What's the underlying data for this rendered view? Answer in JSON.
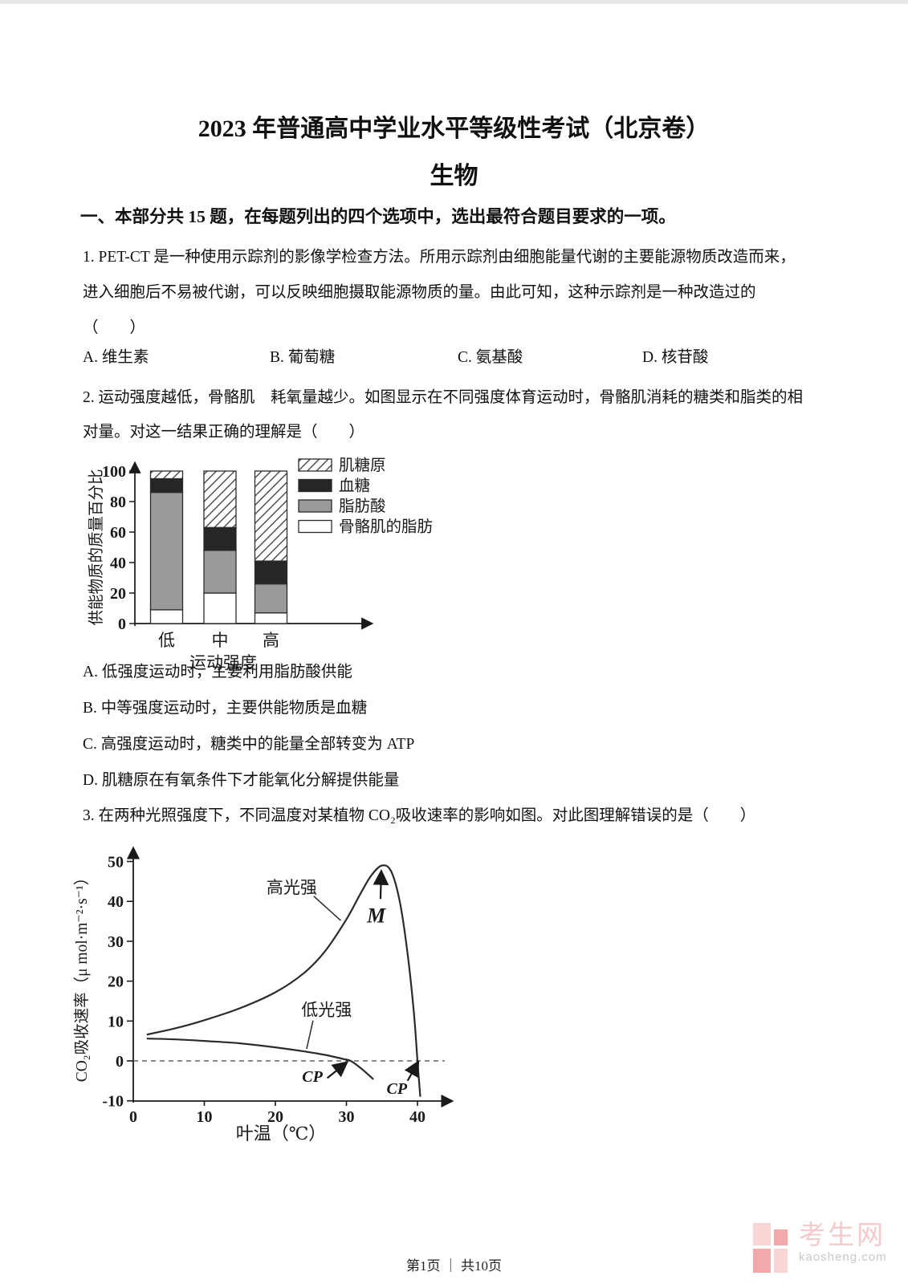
{
  "header": {
    "title": "2023 年普通高中学业水平等级性考试（北京卷）",
    "subject": "生物"
  },
  "section": {
    "heading": "一、本部分共 15 题，在每题列出的四个选项中，选出最符合题目要求的一项。"
  },
  "questions": {
    "q1": {
      "lines": [
        "1. PET-CT 是一种使用示踪剂的影像学检查方法。所用示踪剂由细胞能量代谢的主要能源物质改造而来，",
        "进入细胞后不易被代谢，可以反映细胞摄取能源物质的量。由此可知，这种示踪剂是一种改造过的",
        "（　　）"
      ],
      "options": [
        "A. 维生素",
        "B. 葡萄糖",
        "C. 氨基酸",
        "D. 核苷酸"
      ]
    },
    "q2": {
      "lines": [
        "2. 运动强度越低，骨骼肌　耗氧量越少。如图显示在不同强度体育运动时，骨骼肌消耗的糖类和脂类的相",
        "对量。对这一结果正确的理解是（　　）"
      ],
      "options": [
        "A. 低强度运动时，主要利用脂肪酸供能",
        "B. 中等强度运动时，主要供能物质是血糖",
        "C. 高强度运动时，糖类中的能量全部转变为 ATP",
        "D. 肌糖原在有氧条件下才能氧化分解提供能量"
      ]
    },
    "q3": {
      "lines": [
        "3. 在两种光照强度下，不同温度对某植物 CO₂吸收速率的影响如图。对此图理解错误的是（　　）"
      ]
    }
  },
  "chart_data": [
    {
      "type": "bar",
      "stacked": true,
      "categories": [
        "低",
        "中",
        "高"
      ],
      "series": [
        {
          "name": "骨骼肌的脂肪",
          "values": [
            9,
            20,
            7
          ],
          "fill_key": "white"
        },
        {
          "name": "脂肪酸",
          "values": [
            77,
            28,
            19
          ],
          "fill_key": "gray"
        },
        {
          "name": "血糖",
          "values": [
            9,
            15,
            15
          ],
          "fill_key": "black"
        },
        {
          "name": "肌糖原",
          "values": [
            5,
            37,
            59
          ],
          "fill_key": "hatch"
        }
      ],
      "legend_order": [
        "肌糖原",
        "血糖",
        "脂肪酸",
        "骨骼肌的脂肪"
      ],
      "xlabel": "运动强度",
      "ylabel": "供能物质的质量百分比",
      "yticks": [
        0,
        20,
        40,
        60,
        80,
        100
      ],
      "ylim": [
        0,
        100
      ]
    },
    {
      "type": "line",
      "xlabel": "叶温（℃）",
      "ylabel": "CO₂吸收速率（μ mol·m⁻²·s⁻¹）",
      "xticks": [
        0,
        10,
        20,
        30,
        40
      ],
      "yticks": [
        -10,
        0,
        10,
        20,
        30,
        40,
        50
      ],
      "xlim": [
        0,
        45.5
      ],
      "ylim": [
        -10,
        50
      ],
      "zero_line": "dashed",
      "series": [
        {
          "name": "高光强",
          "points": [
            [
              1.9,
              6.6
            ],
            [
              6,
              8.2
            ],
            [
              10,
              10.2
            ],
            [
              15,
              13.2
            ],
            [
              20,
              17.2
            ],
            [
              24,
              22
            ],
            [
              27,
              27.5
            ],
            [
              30,
              35.5
            ],
            [
              32,
              42
            ],
            [
              33.5,
              46.5
            ],
            [
              35,
              49
            ],
            [
              36.3,
              47.5
            ],
            [
              37.5,
              40
            ],
            [
              38.6,
              27
            ],
            [
              39.5,
              12
            ],
            [
              40,
              0
            ],
            [
              40.4,
              -9
            ]
          ]
        },
        {
          "name": "低光强",
          "points": [
            [
              1.9,
              5.6
            ],
            [
              6,
              5.4
            ],
            [
              10,
              5.0
            ],
            [
              15,
              4.4
            ],
            [
              20,
              3.4
            ],
            [
              24,
              2.4
            ],
            [
              27,
              1.5
            ],
            [
              29.5,
              0.5
            ],
            [
              30.6,
              0
            ],
            [
              32,
              -1.8
            ],
            [
              33.8,
              -4.6
            ]
          ]
        }
      ],
      "annotations": [
        {
          "text": "高光强",
          "x": 22.3,
          "y": 43.5,
          "font": 21,
          "leader": [
            [
              25.4,
              41.3
            ],
            [
              29.2,
              35.2
            ]
          ]
        },
        {
          "text": "M",
          "x": 34.2,
          "y": 36.5,
          "italic": true,
          "bold": true,
          "font": 26,
          "arrow": [
            [
              34.8,
              40.6
            ],
            [
              34.9,
              47.2
            ]
          ]
        },
        {
          "text": "低光强",
          "x": 27.2,
          "y": 12.8,
          "font": 21,
          "leader": [
            [
              25.3,
              10.1
            ],
            [
              24.4,
              3.0
            ]
          ]
        },
        {
          "text": "CP",
          "x": 25.2,
          "y": -3.8,
          "italic": true,
          "bold": true,
          "font": 20,
          "arrow": [
            [
              27.3,
              -4.3
            ],
            [
              29.9,
              -0.6
            ]
          ]
        },
        {
          "text": "CP",
          "x": 37.1,
          "y": -6.8,
          "italic": true,
          "bold": true,
          "font": 20,
          "arrow": [
            [
              38.6,
              -5.0
            ],
            [
              40.0,
              -0.6
            ]
          ]
        }
      ]
    }
  ],
  "footer": {
    "text": "第1页 ｜ 共10页"
  },
  "watermark": {
    "brand": "考生网",
    "domain": "kaosheng.com",
    "color_light": "#f9d6d6",
    "color_dark": "#f2a9a9",
    "brand_color": "#f6caca",
    "domain_color": "#c9c9c9"
  }
}
